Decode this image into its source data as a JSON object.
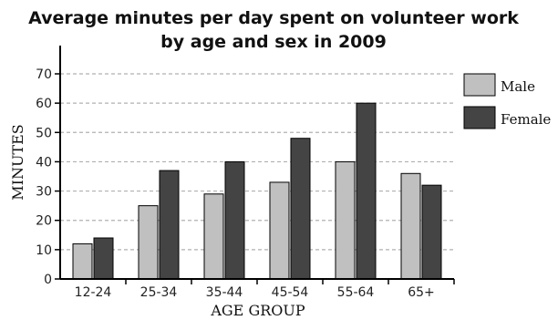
{
  "chart_data": {
    "type": "bar",
    "title_line1": "Average minutes per day spent on volunteer work",
    "title_line2": "by age and sex in 2009",
    "xlabel": "AGE GROUP",
    "ylabel": "MINUTES",
    "categories": [
      "12-24",
      "25-34",
      "35-44",
      "45-54",
      "55-64",
      "65+"
    ],
    "series": [
      {
        "name": "Male",
        "color": "#c0c0c0",
        "values": [
          12,
          25,
          29,
          33,
          40,
          36
        ]
      },
      {
        "name": "Female",
        "color": "#444444",
        "values": [
          14,
          37,
          40,
          48,
          60,
          32
        ]
      }
    ],
    "ylim": [
      0,
      70
    ],
    "yticks": [
      0,
      10,
      20,
      30,
      40,
      50,
      60,
      70
    ],
    "grid": true,
    "legend_position": "top-right"
  }
}
